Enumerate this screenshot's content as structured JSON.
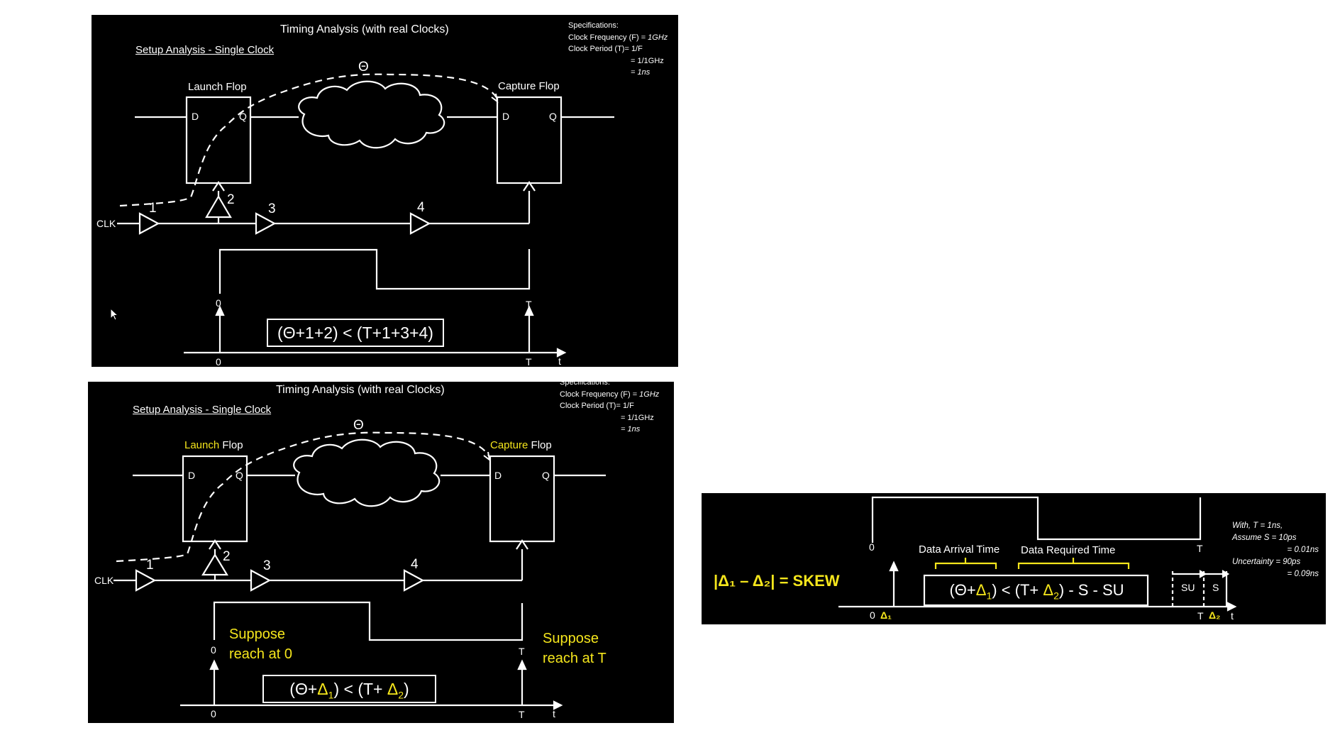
{
  "panel1": {
    "title": "Timing Analysis (with real Clocks)",
    "subtitle": "Setup Analysis - Single Clock",
    "theta": "Θ",
    "launch_flop": "Launch Flop",
    "capture_flop": "Capture Flop",
    "pin_d": "D",
    "pin_q": "Q",
    "clk": "CLK",
    "buf1": "1",
    "buf2": "2",
    "buf3": "3",
    "buf4": "4",
    "tick_0": "0",
    "tick_T": "T",
    "tick_t": "t",
    "equation": "(Θ+1+2) < (T+1+3+4)",
    "spec": {
      "heading": "Specifications:",
      "freq_label": "Clock Frequency (F) = ",
      "freq_value": "1GHz",
      "period_label": "Clock Period (T)= 1/F",
      "period_eq1": "= 1/1GHz",
      "period_eq2": "= 1ns"
    }
  },
  "panel2": {
    "title": "Timing Analysis (with real Clocks)",
    "subtitle": "Setup Analysis - Single Clock",
    "theta": "Θ",
    "launch_word": "Launch",
    "capture_word": "Capture",
    "flop_word": "Flop",
    "pin_d": "D",
    "pin_q": "Q",
    "clk": "CLK",
    "buf1": "1",
    "buf2": "2",
    "buf3": "3",
    "buf4": "4",
    "tick_0": "0",
    "tick_T": "T",
    "tick_t": "t",
    "suppose_0_line1": "Suppose",
    "suppose_0_line2": "reach at 0",
    "suppose_T_line1": "Suppose",
    "suppose_T_line2": "reach at T",
    "eq_part1": "(Θ+",
    "delta1": "Δ",
    "delta1_sub": "1",
    "eq_part2": ") < (T+ ",
    "delta2": "Δ",
    "delta2_sub": "2",
    "eq_part3": ")",
    "spec": {
      "heading": "Specifications:",
      "freq_label": "Clock Frequency (F) = ",
      "freq_value": "1GHz",
      "period_label": "Clock Period (T)= 1/F",
      "period_eq1": "= 1/1GHz",
      "period_eq2": "= 1ns"
    }
  },
  "panel3": {
    "tick_0_top": "0",
    "tick_T_top": "T",
    "data_arrival": "Data Arrival Time",
    "data_required": "Data Required Time",
    "skew": "|Δ₁ – Δ₂| = SKEW",
    "eq_part1": "(Θ+",
    "delta1": "Δ",
    "delta1_sub": "1",
    "eq_part2": ") < (T+ ",
    "delta2": "Δ",
    "delta2_sub": "2",
    "eq_part3": ") - S - SU",
    "su": "SU",
    "s": "S",
    "tick_0": "0",
    "tick_d1": "Δ₁",
    "tick_T": "T",
    "tick_d2": "Δ₂",
    "tick_t": "t",
    "notes": {
      "l1": "With, T = 1ns,",
      "l2": "Assume S = 10ps",
      "l3": "= 0.01ns",
      "l4": "Uncertainty = 90ps",
      "l5": "= 0.09ns"
    }
  },
  "colors": {
    "accent": "#f5e61c",
    "background": "#000000",
    "stroke": "#ffffff"
  }
}
